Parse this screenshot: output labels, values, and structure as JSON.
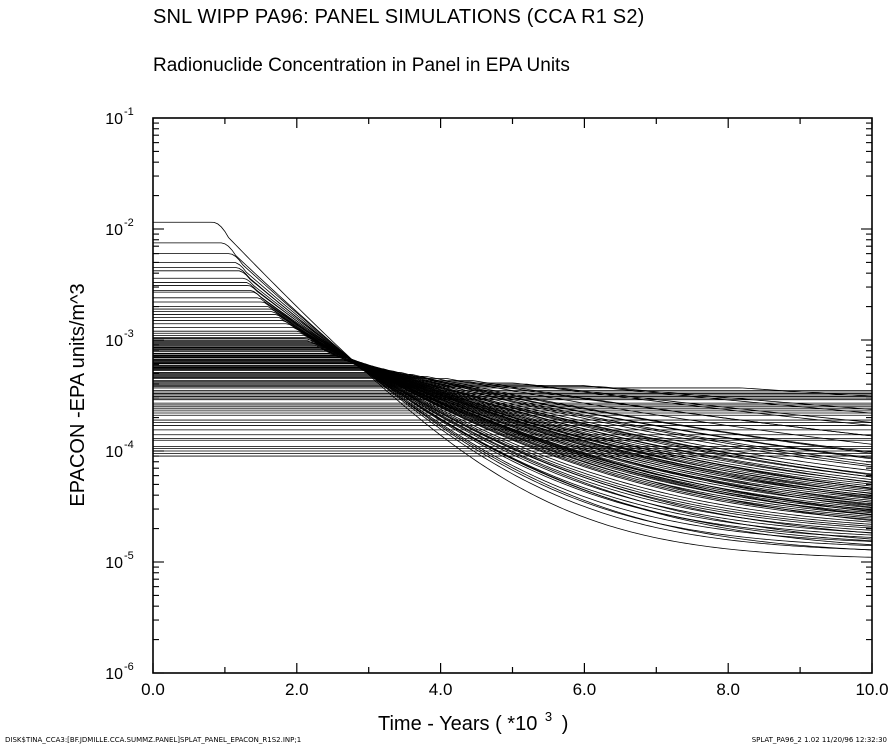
{
  "header": {
    "title": "SNL WIPP PA96: PANEL SIMULATIONS (CCA R1 S2)",
    "subtitle": "Radionuclide Concentration in Panel in EPA Units"
  },
  "footer": {
    "left": "DISK$TINA_CCA3:[BF.JDMILLE.CCA.SUMMZ.PANEL]SPLAT_PANEL_EPACON_R1S2.INP;1",
    "right": "SPLAT_PA96_2 1.02 11/20/96 12:32:30"
  },
  "chart_data": {
    "type": "line",
    "title": "SNL WIPP PA96: PANEL SIMULATIONS (CCA R1 S2)",
    "subtitle": "Radionuclide Concentration in Panel in EPA Units",
    "xlabel": "Time - Years ( *10",
    "xlabel_exponent": "3",
    "xlabel_close": ")",
    "ylabel": "EPACON -EPA units/m^3",
    "xlim": [
      0,
      10
    ],
    "ylim_log10": [
      -6,
      -1
    ],
    "y_scale": "log",
    "grid": false,
    "legend": "none",
    "x_ticks": [
      {
        "value": 0,
        "label": "0.0"
      },
      {
        "value": 2,
        "label": "2.0"
      },
      {
        "value": 4,
        "label": "4.0"
      },
      {
        "value": 6,
        "label": "6.0"
      },
      {
        "value": 8,
        "label": "8.0"
      },
      {
        "value": 10,
        "label": "10.0"
      }
    ],
    "y_ticks": [
      {
        "value": -1,
        "base": "10",
        "exp": "-1"
      },
      {
        "value": -2,
        "base": "10",
        "exp": "-2"
      },
      {
        "value": -3,
        "base": "10",
        "exp": "-3"
      },
      {
        "value": -4,
        "base": "10",
        "exp": "-4"
      },
      {
        "value": -5,
        "base": "10",
        "exp": "-5"
      },
      {
        "value": -6,
        "base": "10",
        "exp": "-6"
      }
    ],
    "line_color": "#000000",
    "series_model": {
      "description": "100 realizations; each holds initial concentration c0 until time t_start, then declines toward an asymptote near converge_point, leveling off at c_final by 10000 years",
      "count": 100,
      "converge_point": {
        "x": 3.0,
        "y": 0.00034
      },
      "c0_range": [
        9e-05,
        0.0115
      ],
      "c_final_range": [
        1.05e-05,
        7.5e-05
      ]
    },
    "series": [
      {
        "c0": 0.0115,
        "t_start": 0.8,
        "c_final": 1.05e-05
      },
      {
        "c0": 0.0075,
        "t_start": 0.9,
        "c_final": 1.2e-05
      },
      {
        "c0": 0.006,
        "t_start": 1.0,
        "c_final": 1.3e-05
      },
      {
        "c0": 0.005,
        "t_start": 1.05,
        "c_final": 1.4e-05
      },
      {
        "c0": 0.0042,
        "t_start": 1.1,
        "c_final": 1.5e-05
      },
      {
        "c0": 0.0036,
        "t_start": 1.15,
        "c_final": 1.55e-05
      },
      {
        "c0": 0.0031,
        "t_start": 1.2,
        "c_final": 1.6e-05
      },
      {
        "c0": 0.0027,
        "t_start": 1.25,
        "c_final": 1.65e-05
      },
      {
        "c0": 0.0024,
        "t_start": 1.3,
        "c_final": 1.7e-05
      },
      {
        "c0": 0.0022,
        "t_start": 1.35,
        "c_final": 1.75e-05
      },
      {
        "c0": 0.002,
        "t_start": 1.4,
        "c_final": 1.8e-05
      },
      {
        "c0": 0.0018,
        "t_start": 1.45,
        "c_final": 1.85e-05
      },
      {
        "c0": 0.0016,
        "t_start": 1.5,
        "c_final": 1.9e-05
      },
      {
        "c0": 0.0015,
        "t_start": 1.55,
        "c_final": 1.95e-05
      },
      {
        "c0": 0.0014,
        "t_start": 1.6,
        "c_final": 2e-05
      },
      {
        "c0": 0.0013,
        "t_start": 1.65,
        "c_final": 2.05e-05
      },
      {
        "c0": 0.0012,
        "t_start": 1.7,
        "c_final": 2.1e-05
      },
      {
        "c0": 0.00115,
        "t_start": 1.72,
        "c_final": 2.15e-05
      },
      {
        "c0": 0.0011,
        "t_start": 1.75,
        "c_final": 2.2e-05
      },
      {
        "c0": 0.00105,
        "t_start": 1.78,
        "c_final": 2.25e-05
      },
      {
        "c0": 0.001,
        "t_start": 1.8,
        "c_final": 2.3e-05
      },
      {
        "c0": 0.00096,
        "t_start": 1.82,
        "c_final": 2.35e-05
      },
      {
        "c0": 0.00092,
        "t_start": 1.85,
        "c_final": 2.4e-05
      },
      {
        "c0": 0.00088,
        "t_start": 1.88,
        "c_final": 2.45e-05
      },
      {
        "c0": 0.00085,
        "t_start": 1.9,
        "c_final": 2.5e-05
      },
      {
        "c0": 0.00082,
        "t_start": 1.92,
        "c_final": 2.55e-05
      },
      {
        "c0": 0.00079,
        "t_start": 1.95,
        "c_final": 2.6e-05
      },
      {
        "c0": 0.00076,
        "t_start": 1.97,
        "c_final": 2.65e-05
      },
      {
        "c0": 0.00073,
        "t_start": 2.0,
        "c_final": 2.7e-05
      },
      {
        "c0": 0.00071,
        "t_start": 2.02,
        "c_final": 2.75e-05
      },
      {
        "c0": 0.00069,
        "t_start": 2.04,
        "c_final": 2.8e-05
      },
      {
        "c0": 0.00067,
        "t_start": 2.06,
        "c_final": 2.85e-05
      },
      {
        "c0": 0.00065,
        "t_start": 2.08,
        "c_final": 2.9e-05
      },
      {
        "c0": 0.00063,
        "t_start": 2.1,
        "c_final": 2.95e-05
      },
      {
        "c0": 0.00061,
        "t_start": 2.12,
        "c_final": 3e-05
      },
      {
        "c0": 0.00059,
        "t_start": 2.14,
        "c_final": 3.05e-05
      },
      {
        "c0": 0.00057,
        "t_start": 2.16,
        "c_final": 3.1e-05
      },
      {
        "c0": 0.00055,
        "t_start": 2.18,
        "c_final": 3.15e-05
      },
      {
        "c0": 0.00053,
        "t_start": 2.2,
        "c_final": 3.2e-05
      },
      {
        "c0": 0.00051,
        "t_start": 2.22,
        "c_final": 3.25e-05
      },
      {
        "c0": 0.00049,
        "t_start": 2.25,
        "c_final": 3.3e-05
      },
      {
        "c0": 0.00047,
        "t_start": 2.28,
        "c_final": 3.4e-05
      },
      {
        "c0": 0.00045,
        "t_start": 2.3,
        "c_final": 3.5e-05
      },
      {
        "c0": 0.00043,
        "t_start": 2.33,
        "c_final": 3.6e-05
      },
      {
        "c0": 0.00041,
        "t_start": 2.36,
        "c_final": 3.7e-05
      },
      {
        "c0": 0.00039,
        "t_start": 2.4,
        "c_final": 3.8e-05
      },
      {
        "c0": 0.00037,
        "t_start": 2.43,
        "c_final": 3.9e-05
      },
      {
        "c0": 0.00035,
        "t_start": 2.46,
        "c_final": 4e-05
      },
      {
        "c0": 0.00033,
        "t_start": 2.5,
        "c_final": 4.1e-05
      },
      {
        "c0": 0.00031,
        "t_start": 2.53,
        "c_final": 4.2e-05
      },
      {
        "c0": 0.00029,
        "t_start": 2.56,
        "c_final": 4.4e-05
      },
      {
        "c0": 0.00027,
        "t_start": 2.6,
        "c_final": 4.6e-05
      },
      {
        "c0": 0.00025,
        "t_start": 2.65,
        "c_final": 4.8e-05
      },
      {
        "c0": 0.00023,
        "t_start": 2.7,
        "c_final": 5e-05
      },
      {
        "c0": 0.00021,
        "t_start": 2.75,
        "c_final": 5.3e-05
      },
      {
        "c0": 0.00019,
        "t_start": 2.8,
        "c_final": 5.6e-05
      },
      {
        "c0": 0.00017,
        "t_start": 2.85,
        "c_final": 6e-05
      },
      {
        "c0": 0.000155,
        "t_start": 2.9,
        "c_final": 6.4e-05
      },
      {
        "c0": 0.00014,
        "t_start": 2.95,
        "c_final": 6.7e-05
      },
      {
        "c0": 0.000125,
        "t_start": 3.0,
        "c_final": 7e-05
      },
      {
        "c0": 0.00011,
        "t_start": 3.05,
        "c_final": 7.2e-05
      },
      {
        "c0": 0.0001,
        "t_start": 3.1,
        "c_final": 7.4e-05
      },
      {
        "c0": 9.5e-05,
        "t_start": 3.15,
        "c_final": 7.5e-05
      },
      {
        "c0": 9e-05,
        "t_start": 3.2,
        "c_final": 7.5e-05
      },
      {
        "c0": 0.00098,
        "t_start": 1.83,
        "c_final": 1.6e-05
      },
      {
        "c0": 0.0009,
        "t_start": 1.86,
        "c_final": 1.7e-05
      },
      {
        "c0": 0.00086,
        "t_start": 1.89,
        "c_final": 1.8e-05
      },
      {
        "c0": 0.0008,
        "t_start": 1.93,
        "c_final": 1.9e-05
      },
      {
        "c0": 0.00075,
        "t_start": 1.96,
        "c_final": 2e-05
      },
      {
        "c0": 0.0007,
        "t_start": 2.01,
        "c_final": 2.1e-05
      },
      {
        "c0": 0.00066,
        "t_start": 2.05,
        "c_final": 2.2e-05
      },
      {
        "c0": 0.00062,
        "t_start": 2.09,
        "c_final": 2.3e-05
      },
      {
        "c0": 0.00058,
        "t_start": 2.13,
        "c_final": 2.4e-05
      },
      {
        "c0": 0.00054,
        "t_start": 2.17,
        "c_final": 2.5e-05
      },
      {
        "c0": 0.0005,
        "t_start": 2.21,
        "c_final": 2.6e-05
      },
      {
        "c0": 0.00046,
        "t_start": 2.27,
        "c_final": 2.7e-05
      },
      {
        "c0": 0.00042,
        "t_start": 2.33,
        "c_final": 2.8e-05
      },
      {
        "c0": 0.00038,
        "t_start": 2.4,
        "c_final": 2.9e-05
      },
      {
        "c0": 0.00034,
        "t_start": 2.47,
        "c_final": 3e-05
      },
      {
        "c0": 0.0003,
        "t_start": 2.55,
        "c_final": 3.1e-05
      },
      {
        "c0": 0.00026,
        "t_start": 2.63,
        "c_final": 3.2e-05
      },
      {
        "c0": 0.00022,
        "t_start": 2.72,
        "c_final": 3.4e-05
      },
      {
        "c0": 0.0019,
        "t_start": 1.47,
        "c_final": 1.3e-05
      },
      {
        "c0": 0.0017,
        "t_start": 1.52,
        "c_final": 1.45e-05
      },
      {
        "c0": 0.0028,
        "t_start": 1.24,
        "c_final": 1.2e-05
      },
      {
        "c0": 0.0033,
        "t_start": 1.18,
        "c_final": 1.35e-05
      },
      {
        "c0": 0.0045,
        "t_start": 1.08,
        "c_final": 1.15e-05
      },
      {
        "c0": 0.00103,
        "t_start": 1.79,
        "c_final": 1.9e-05
      },
      {
        "c0": 0.00094,
        "t_start": 1.84,
        "c_final": 2e-05
      },
      {
        "c0": 0.00084,
        "t_start": 1.9,
        "c_final": 2.1e-05
      },
      {
        "c0": 0.00072,
        "t_start": 1.99,
        "c_final": 2.3e-05
      },
      {
        "c0": 0.00064,
        "t_start": 2.07,
        "c_final": 2.45e-05
      },
      {
        "c0": 0.00056,
        "t_start": 2.15,
        "c_final": 2.6e-05
      },
      {
        "c0": 0.00048,
        "t_start": 2.26,
        "c_final": 2.9e-05
      },
      {
        "c0": 0.0004,
        "t_start": 2.38,
        "c_final": 3.3e-05
      },
      {
        "c0": 0.00032,
        "t_start": 2.52,
        "c_final": 3.7e-05
      },
      {
        "c0": 0.00024,
        "t_start": 2.67,
        "c_final": 4.3e-05
      },
      {
        "c0": 0.00018,
        "t_start": 2.83,
        "c_final": 5.2e-05
      },
      {
        "c0": 0.00013,
        "t_start": 2.98,
        "c_final": 6.2e-05
      },
      {
        "c0": 0.000105,
        "t_start": 3.08,
        "c_final": 6.8e-05
      }
    ]
  }
}
